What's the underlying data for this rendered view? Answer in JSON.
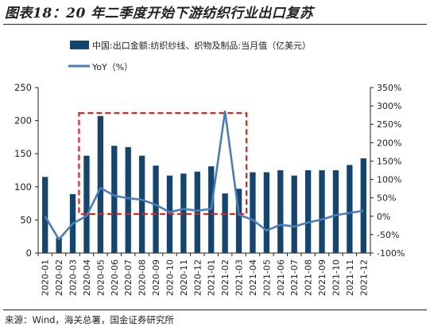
{
  "figure": {
    "title": "图表18：20 年二季度开始下游纺织行业出口复苏",
    "source": "来源：Wind，海关总署，国金证券研究所"
  },
  "colors": {
    "bar": "#14456e",
    "line": "#4a7ebb",
    "highlight_box": "#e8211d",
    "axis": "#222222"
  },
  "chart_data": {
    "type": "bar",
    "categories": [
      "2020-01",
      "2020-02",
      "2020-03",
      "2020-04",
      "2020-05",
      "2020-06",
      "2020-07",
      "2020-08",
      "2020-09",
      "2020-10",
      "2020-11",
      "2020-12",
      "2021-01",
      "2021-02",
      "2021-03",
      "2021-04",
      "2021-05",
      "2021-06",
      "2021-07",
      "2021-08",
      "2021-09",
      "2021-10",
      "2021-11",
      "2021-12"
    ],
    "series": [
      {
        "name": "中国:出口金额:纺织纱线、织物及制品:当月值（亿美元）",
        "type": "bar",
        "axis": "left",
        "values": [
          115,
          23,
          89,
          147,
          207,
          162,
          160,
          147,
          132,
          117,
          120,
          123,
          131,
          90,
          97,
          122,
          122,
          125,
          117,
          125,
          125,
          125,
          133,
          143
        ]
      },
      {
        "name": "YoY（%）",
        "type": "line",
        "axis": "right",
        "values": [
          0,
          -63,
          -20,
          1,
          77,
          56,
          49,
          45,
          31,
          11,
          20,
          15,
          20,
          285,
          4,
          -10,
          -39,
          -23,
          -28,
          -17,
          -9,
          3,
          9,
          15
        ]
      }
    ],
    "y_left": {
      "ylim": [
        0,
        250
      ],
      "ticks": [
        "0",
        "50",
        "100",
        "150",
        "200",
        "250"
      ]
    },
    "y_right": {
      "ylim": [
        -100,
        350
      ],
      "ticks": [
        "-100%",
        "-50%",
        "0%",
        "50%",
        "100%",
        "150%",
        "200%",
        "250%",
        "300%",
        "350%"
      ]
    },
    "annotations": [
      {
        "type": "dashed-box",
        "from": "2020-04",
        "to": "2021-03"
      }
    ],
    "legend_position": "top",
    "grid": false
  }
}
